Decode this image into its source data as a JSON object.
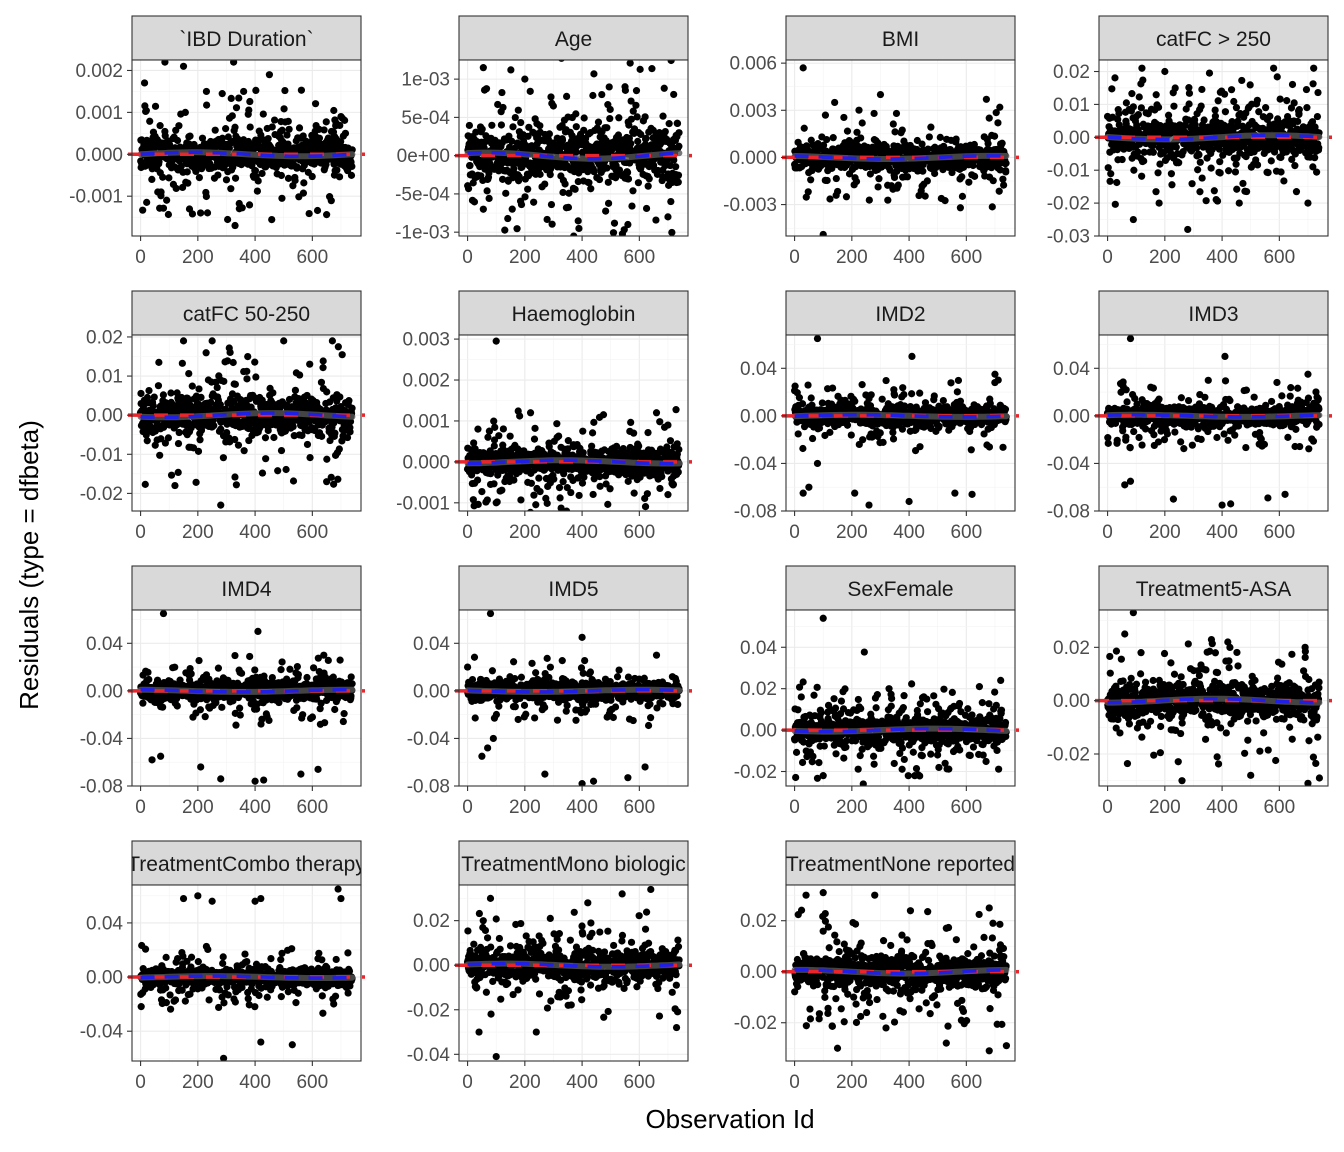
{
  "chart_data": {
    "type": "scatter",
    "xlabel": "Observation Id",
    "ylabel": "Residuals (type = dfbeta)",
    "x_ticks": [
      "0",
      "200",
      "400",
      "600"
    ],
    "xlim": [
      -30,
      770
    ],
    "n_observations": 740,
    "grid": "on",
    "reference_line": {
      "y": 0,
      "color": "#e8262b",
      "style": "dashed"
    },
    "smooth_color": "#1f1fe6",
    "point_color": "#000000",
    "panels": [
      {
        "title": "`IBD Duration`",
        "ylim": [
          -0.00195,
          0.00225
        ],
        "yticks": [
          -0.001,
          0,
          0.001,
          0.002
        ],
        "ytick_labels": [
          "-0.001",
          "0.000",
          "0.001",
          "0.002"
        ],
        "spread": 0.00026,
        "pos_outliers": [
          [
            85,
            0.0022
          ],
          [
            150,
            0.0021
          ],
          [
            230,
            0.0015
          ],
          [
            325,
            0.0022
          ],
          [
            360,
            0.0015
          ],
          [
            450,
            0.0019
          ],
          [
            700,
            0.0009
          ]
        ],
        "neg_outliers": [
          [
            330,
            -0.0017
          ],
          [
            345,
            -0.0013
          ],
          [
            60,
            -0.0009
          ]
        ]
      },
      {
        "title": "Age",
        "ylim": [
          -0.00105,
          0.00125
        ],
        "yticks": [
          -0.001,
          -0.0005,
          0,
          0.0005,
          0.001
        ],
        "ytick_labels": [
          "-1e-03",
          "-5e-04",
          "0e+00",
          "5e-04",
          "1e-03"
        ],
        "spread": 0.00022,
        "pos_outliers": [
          [
            55,
            0.00115
          ],
          [
            200,
            0.001
          ],
          [
            550,
            0.0009
          ],
          [
            590,
            0.00085
          ],
          [
            720,
            0.0008
          ]
        ],
        "neg_outliers": [
          [
            55,
            -0.0007
          ],
          [
            560,
            -0.0009
          ],
          [
            700,
            -0.0008
          ],
          [
            710,
            -0.0006
          ]
        ]
      },
      {
        "title": "BMI",
        "ylim": [
          -0.005,
          0.0062
        ],
        "yticks": [
          -0.003,
          0,
          0.003,
          0.006
        ],
        "ytick_labels": [
          "-0.003",
          "0.000",
          "0.003",
          "0.006"
        ],
        "spread": 0.00055,
        "pos_outliers": [
          [
            30,
            0.0057
          ],
          [
            140,
            0.0035
          ],
          [
            300,
            0.004
          ],
          [
            670,
            0.0037
          ],
          [
            680,
            0.0025
          ]
        ],
        "neg_outliers": [
          [
            100,
            -0.0049
          ]
        ]
      },
      {
        "title": "catFC > 250",
        "ylim": [
          -0.03,
          0.0235
        ],
        "yticks": [
          -0.03,
          -0.02,
          -0.01,
          0,
          0.01,
          0.02
        ],
        "ytick_labels": [
          "-0.03",
          "-0.02",
          "-0.01",
          "0.00",
          "0.01",
          "0.02"
        ],
        "spread": 0.0035,
        "pos_outliers": [
          [
            120,
            0.021
          ],
          [
            200,
            0.02
          ],
          [
            580,
            0.021
          ],
          [
            720,
            0.021
          ]
        ],
        "neg_outliers": [
          [
            90,
            -0.025
          ],
          [
            280,
            -0.028
          ],
          [
            180,
            -0.02
          ],
          [
            460,
            -0.02
          ],
          [
            700,
            -0.02
          ]
        ]
      },
      {
        "title": "catFC 50-250",
        "ylim": [
          -0.0245,
          0.0205
        ],
        "yticks": [
          -0.02,
          -0.01,
          0,
          0.01,
          0.02
        ],
        "ytick_labels": [
          "-0.02",
          "-0.01",
          "0.00",
          "0.01",
          "0.02"
        ],
        "spread": 0.003,
        "pos_outliers": [
          [
            150,
            0.019
          ],
          [
            250,
            0.019
          ],
          [
            500,
            0.019
          ],
          [
            670,
            0.019
          ]
        ],
        "neg_outliers": [
          [
            280,
            -0.023
          ],
          [
            120,
            -0.018
          ],
          [
            650,
            -0.017
          ]
        ]
      },
      {
        "title": "Haemoglobin",
        "ylim": [
          -0.0012,
          0.0031
        ],
        "yticks": [
          -0.001,
          0,
          0.001,
          0.002,
          0.003
        ],
        "ytick_labels": [
          "-0.001",
          "0.000",
          "0.001",
          "0.002",
          "0.003"
        ],
        "spread": 0.00022,
        "pos_outliers": [
          [
            100,
            0.00295
          ],
          [
            220,
            0.0012
          ],
          [
            660,
            0.0012
          ],
          [
            700,
            0.0009
          ]
        ],
        "neg_outliers": [
          [
            100,
            -0.001
          ],
          [
            700,
            -0.0008
          ]
        ]
      },
      {
        "title": "IMD2",
        "ylim": [
          -0.08,
          0.068
        ],
        "yticks": [
          -0.08,
          -0.04,
          0,
          0.04
        ],
        "ytick_labels": [
          "-0.08",
          "-0.04",
          "0.00",
          "0.04"
        ],
        "spread": 0.005,
        "pos_outliers": [
          [
            80,
            0.065
          ],
          [
            410,
            0.05
          ],
          [
            700,
            0.035
          ]
        ],
        "neg_outliers": [
          [
            30,
            -0.065
          ],
          [
            50,
            -0.06
          ],
          [
            80,
            -0.04
          ],
          [
            210,
            -0.065
          ],
          [
            260,
            -0.075
          ],
          [
            400,
            -0.072
          ],
          [
            560,
            -0.065
          ],
          [
            620,
            -0.066
          ]
        ]
      },
      {
        "title": "IMD3",
        "ylim": [
          -0.08,
          0.068
        ],
        "yticks": [
          -0.08,
          -0.04,
          0,
          0.04
        ],
        "ytick_labels": [
          "-0.08",
          "-0.04",
          "0.00",
          "0.04"
        ],
        "spread": 0.005,
        "pos_outliers": [
          [
            80,
            0.065
          ],
          [
            410,
            0.05
          ],
          [
            700,
            0.035
          ]
        ],
        "neg_outliers": [
          [
            60,
            -0.058
          ],
          [
            80,
            -0.055
          ],
          [
            230,
            -0.07
          ],
          [
            400,
            -0.075
          ],
          [
            430,
            -0.074
          ],
          [
            560,
            -0.069
          ],
          [
            620,
            -0.066
          ]
        ]
      },
      {
        "title": "IMD4",
        "ylim": [
          -0.08,
          0.068
        ],
        "yticks": [
          -0.08,
          -0.04,
          0,
          0.04
        ],
        "ytick_labels": [
          "-0.08",
          "-0.04",
          "0.00",
          "0.04"
        ],
        "spread": 0.005,
        "pos_outliers": [
          [
            80,
            0.065
          ],
          [
            410,
            0.05
          ],
          [
            640,
            0.03
          ]
        ],
        "neg_outliers": [
          [
            40,
            -0.058
          ],
          [
            70,
            -0.055
          ],
          [
            210,
            -0.064
          ],
          [
            280,
            -0.074
          ],
          [
            400,
            -0.076
          ],
          [
            430,
            -0.075
          ],
          [
            560,
            -0.07
          ],
          [
            620,
            -0.066
          ]
        ]
      },
      {
        "title": "IMD5",
        "ylim": [
          -0.08,
          0.068
        ],
        "yticks": [
          -0.08,
          -0.04,
          0,
          0.04
        ],
        "ytick_labels": [
          "-0.08",
          "-0.04",
          "0.00",
          "0.04"
        ],
        "spread": 0.005,
        "pos_outliers": [
          [
            80,
            0.065
          ],
          [
            400,
            0.045
          ],
          [
            660,
            0.03
          ]
        ],
        "neg_outliers": [
          [
            50,
            -0.055
          ],
          [
            70,
            -0.048
          ],
          [
            90,
            -0.04
          ],
          [
            270,
            -0.07
          ],
          [
            400,
            -0.078
          ],
          [
            440,
            -0.076
          ],
          [
            560,
            -0.073
          ],
          [
            620,
            -0.064
          ]
        ]
      },
      {
        "title": "SexFemale",
        "ylim": [
          -0.027,
          0.058
        ],
        "yticks": [
          -0.02,
          0,
          0.02,
          0.04
        ],
        "ytick_labels": [
          "-0.02",
          "0.00",
          "0.02",
          "0.04"
        ],
        "spread": 0.004,
        "pos_outliers": [
          [
            100,
            0.054
          ],
          [
            720,
            0.024
          ],
          [
            330,
            0.02
          ]
        ],
        "neg_outliers": [
          [
            240,
            -0.026
          ],
          [
            100,
            -0.022
          ],
          [
            420,
            -0.022
          ]
        ]
      },
      {
        "title": "Treatment5-ASA",
        "ylim": [
          -0.032,
          0.034
        ],
        "yticks": [
          -0.02,
          0,
          0.02
        ],
        "ytick_labels": [
          "-0.02",
          "0.00",
          "0.02"
        ],
        "spread": 0.004,
        "pos_outliers": [
          [
            90,
            0.033
          ],
          [
            60,
            0.025
          ],
          [
            420,
            0.022
          ],
          [
            690,
            0.02
          ]
        ],
        "neg_outliers": [
          [
            260,
            -0.03
          ],
          [
            500,
            -0.028
          ],
          [
            700,
            -0.031
          ],
          [
            740,
            -0.029
          ]
        ]
      },
      {
        "title": "TreatmentCombo therapy",
        "ylim": [
          -0.062,
          0.068
        ],
        "yticks": [
          -0.04,
          0,
          0.04
        ],
        "ytick_labels": [
          "-0.04",
          "0.00",
          "0.04"
        ],
        "spread": 0.004,
        "pos_outliers": [
          [
            150,
            0.058
          ],
          [
            200,
            0.06
          ],
          [
            250,
            0.056
          ],
          [
            400,
            0.056
          ],
          [
            420,
            0.058
          ],
          [
            690,
            0.065
          ],
          [
            700,
            0.058
          ]
        ],
        "neg_outliers": [
          [
            290,
            -0.06
          ],
          [
            530,
            -0.05
          ],
          [
            420,
            -0.048
          ]
        ]
      },
      {
        "title": "TreatmentMono biologic",
        "ylim": [
          -0.043,
          0.036
        ],
        "yticks": [
          -0.04,
          -0.02,
          0,
          0.02
        ],
        "ytick_labels": [
          "-0.04",
          "-0.02",
          "0.00",
          "0.02"
        ],
        "spread": 0.004,
        "pos_outliers": [
          [
            80,
            0.03
          ],
          [
            420,
            0.028
          ],
          [
            540,
            0.032
          ],
          [
            640,
            0.034
          ]
        ],
        "neg_outliers": [
          [
            100,
            -0.041
          ],
          [
            40,
            -0.03
          ],
          [
            240,
            -0.03
          ],
          [
            730,
            -0.028
          ]
        ]
      },
      {
        "title": "TreatmentNone reported",
        "ylim": [
          -0.035,
          0.034
        ],
        "yticks": [
          -0.02,
          0,
          0.02
        ],
        "ytick_labels": [
          "-0.02",
          "0.00",
          "0.02"
        ],
        "spread": 0.004,
        "pos_outliers": [
          [
            40,
            0.03
          ],
          [
            100,
            0.031
          ],
          [
            280,
            0.03
          ],
          [
            680,
            0.025
          ]
        ],
        "neg_outliers": [
          [
            150,
            -0.03
          ],
          [
            530,
            -0.028
          ],
          [
            680,
            -0.031
          ],
          [
            740,
            -0.029
          ]
        ]
      }
    ]
  }
}
